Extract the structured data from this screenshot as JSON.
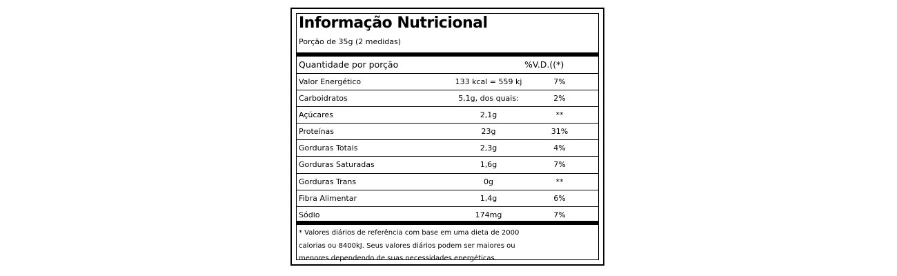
{
  "label": {
    "title": "Informação Nutricional",
    "serving": "Porção de 35g (2 medidas)",
    "header": {
      "quantity_label": "Quantidade por porção",
      "vd_label": "%V.D.((*)"
    },
    "rows": [
      {
        "name": "Valor Energético",
        "amount": "133 kcal = 559 kj",
        "vd": "7%"
      },
      {
        "name": "Carboidratos",
        "amount": "5,1g, dos quais:",
        "vd": "2%"
      },
      {
        "name": "Açúcares",
        "amount": "2,1g",
        "vd": "**"
      },
      {
        "name": "Proteínas",
        "amount": "23g",
        "vd": "31%"
      },
      {
        "name": "Gorduras Totais",
        "amount": "2,3g",
        "vd": "4%"
      },
      {
        "name": "Gorduras Saturadas",
        "amount": "1,6g",
        "vd": "7%"
      },
      {
        "name": "Gorduras Trans",
        "amount": "0g",
        "vd": "**"
      },
      {
        "name": "Fibra Alimentar",
        "amount": "1,4g",
        "vd": "6%"
      },
      {
        "name": "Sódio",
        "amount": "174mg",
        "vd": "7%"
      }
    ],
    "footnote": [
      "* Valores diários de referência com base em uma dieta de 2000",
      "calorias ou 8400kJ. Seus valores diários podem ser maiores ou",
      "menores dependendo de suas necessidades energéticas."
    ]
  }
}
